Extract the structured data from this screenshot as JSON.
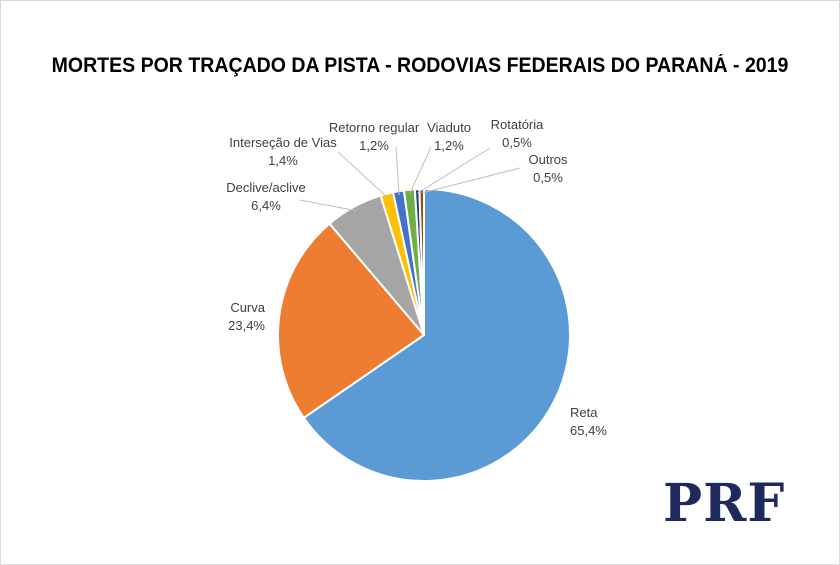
{
  "chart_data": {
    "type": "pie",
    "title": "MORTES POR TRAÇADO DA PISTA - RODOVIAS FEDERAIS DO PARANÁ - 2019",
    "slices": [
      {
        "label": "Reta",
        "value": 65.4,
        "display": "65,4%",
        "color": "#5b9bd5"
      },
      {
        "label": "Curva",
        "value": 23.4,
        "display": "23,4%",
        "color": "#ed7d31"
      },
      {
        "label": "Declive/aclive",
        "value": 6.4,
        "display": "6,4%",
        "color": "#a5a5a5"
      },
      {
        "label": "Interseção de Vias",
        "value": 1.4,
        "display": "1,4%",
        "color": "#ffc000"
      },
      {
        "label": "Retorno regular",
        "value": 1.2,
        "display": "1,2%",
        "color": "#4472c4"
      },
      {
        "label": "Viaduto",
        "value": 1.2,
        "display": "1,2%",
        "color": "#70ad47"
      },
      {
        "label": "Rotatória",
        "value": 0.5,
        "display": "0,5%",
        "color": "#264478"
      },
      {
        "label": "Outros",
        "value": 0.5,
        "display": "0,5%",
        "color": "#9e480e"
      }
    ]
  },
  "logo": {
    "text": "PRF"
  }
}
